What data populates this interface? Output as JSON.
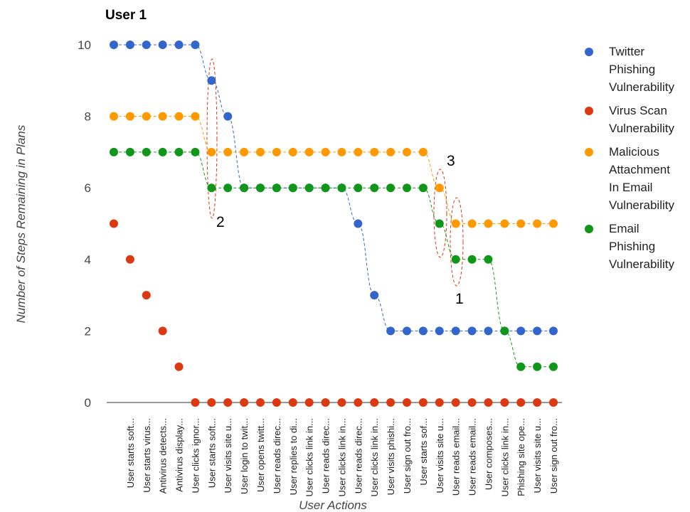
{
  "chart_data": {
    "type": "scatter",
    "title": "User 1",
    "x_label": "User Actions",
    "y_label": "Number of Steps Remaining in Plans",
    "categories": [
      null,
      "User starts soft...",
      "User starts virus...",
      "Antivirus detects...",
      "Antivirus display...",
      "User clicks ignor...",
      "User starts soft...",
      "User visits site u...",
      "User login to twit...",
      "User opens twitt...",
      "User reads direc...",
      "User replies to di...",
      "User clicks link in...",
      "User reads direc...",
      "User clicks link in...",
      "User reads direc...",
      "User clicks link in...",
      "User visits phishi...",
      "User sign out fro...",
      "User starts sof...",
      "User visits site u...",
      "User reads email...",
      "User reads email...",
      "User composes...",
      "User clicks link in...",
      "Phishing site ope...",
      "User visits site u...",
      "User sign out fro..."
    ],
    "series": [
      {
        "name": "Twitter Phishing Vulnerability",
        "color": "#3366cc",
        "trend": true,
        "values": [
          10,
          10,
          10,
          10,
          10,
          10,
          9,
          8,
          6,
          6,
          6,
          6,
          6,
          6,
          6,
          5,
          3,
          2,
          2,
          2,
          2,
          2,
          2,
          2,
          2,
          2,
          2,
          2
        ]
      },
      {
        "name": "Virus Scan Vulnerability",
        "color": "#dc3912",
        "trend": false,
        "values": [
          5,
          4,
          3,
          2,
          1,
          0,
          0,
          0,
          0,
          0,
          0,
          0,
          0,
          0,
          0,
          0,
          0,
          0,
          0,
          0,
          0,
          0,
          0,
          0,
          0,
          0,
          0,
          0
        ]
      },
      {
        "name": "Malicious Attachment In Email Vulnerability",
        "color": "#ff9900",
        "trend": true,
        "values": [
          8,
          8,
          8,
          8,
          8,
          8,
          7,
          7,
          7,
          7,
          7,
          7,
          7,
          7,
          7,
          7,
          7,
          7,
          7,
          7,
          6,
          5,
          5,
          5,
          5,
          5,
          5,
          5
        ]
      },
      {
        "name": "Email Phishing Vulnerability",
        "color": "#109618",
        "trend": true,
        "values": [
          7,
          7,
          7,
          7,
          7,
          7,
          6,
          6,
          6,
          6,
          6,
          6,
          6,
          6,
          6,
          6,
          6,
          6,
          6,
          6,
          5,
          4,
          4,
          4,
          2,
          1,
          1,
          1
        ]
      }
    ],
    "annotations": [
      "2",
      "3",
      "1"
    ],
    "ylim": [
      0,
      10
    ],
    "yticks": [
      0,
      2,
      4,
      6,
      8,
      10
    ],
    "grid": false
  }
}
